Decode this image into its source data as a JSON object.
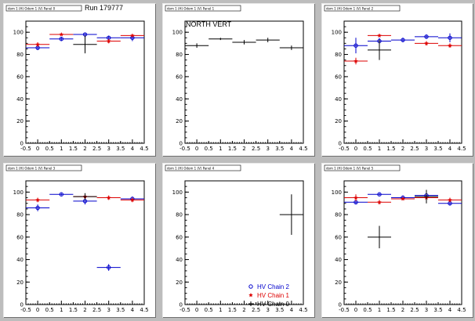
{
  "colors": {
    "chain2": "#0000cc",
    "chain1": "#dd0000",
    "chain0": "#000000"
  },
  "chart_data": [
    {
      "type": "scatter",
      "title": "dom 1 (H) Odom 1 (V) Panel 0",
      "annotation": "Run 179777",
      "xlim": [
        -0.5,
        4.5
      ],
      "ylim": [
        0,
        110
      ],
      "xticks": [
        "-0.5",
        "0",
        "0.5",
        "1",
        "1.5",
        "2",
        "2.5",
        "3",
        "3.5",
        "4",
        "4.5"
      ],
      "yticks": [
        "0",
        "20",
        "40",
        "60",
        "80",
        "100"
      ],
      "series": [
        {
          "color": "chain2",
          "marker": "circle",
          "points": [
            {
              "x": 0,
              "y": 86,
              "xerr": 0.5,
              "yerr": 2
            },
            {
              "x": 1,
              "y": 94,
              "xerr": 0.5,
              "yerr": 2
            },
            {
              "x": 2,
              "y": 98,
              "xerr": 0.5,
              "yerr": 1
            },
            {
              "x": 3,
              "y": 95,
              "xerr": 0.5,
              "yerr": 2
            },
            {
              "x": 4,
              "y": 95,
              "xerr": 0.5,
              "yerr": 3
            }
          ]
        },
        {
          "color": "chain1",
          "marker": "star",
          "points": [
            {
              "x": 0,
              "y": 89,
              "xerr": 0.5,
              "yerr": 2
            },
            {
              "x": 1,
              "y": 98,
              "xerr": 0.5,
              "yerr": 1
            },
            {
              "x": 3,
              "y": 92,
              "xerr": 0.5,
              "yerr": 2
            },
            {
              "x": 4,
              "y": 97,
              "xerr": 0.5,
              "yerr": 1
            }
          ]
        },
        {
          "color": "chain0",
          "marker": "cross",
          "points": [
            {
              "x": 2,
              "y": 89,
              "xerr": 0.5,
              "yerr": 8
            }
          ]
        }
      ]
    },
    {
      "type": "scatter",
      "title": "dom 1 (H) Odom 1 (V) Panel 1",
      "annotation": "NORTH VERT",
      "xlim": [
        -0.5,
        4.5
      ],
      "ylim": [
        0,
        110
      ],
      "xticks": [
        "-0.5",
        "0",
        "0.5",
        "1",
        "1.5",
        "2",
        "2.5",
        "3",
        "3.5",
        "4",
        "4.5"
      ],
      "yticks": [
        "0",
        "20",
        "40",
        "60",
        "80",
        "100"
      ],
      "series": [
        {
          "color": "chain0",
          "marker": "cross",
          "points": [
            {
              "x": 0,
              "y": 88,
              "xerr": 0.5,
              "yerr": 2
            },
            {
              "x": 1,
              "y": 94,
              "xerr": 0.5,
              "yerr": 1
            },
            {
              "x": 2,
              "y": 91,
              "xerr": 0.5,
              "yerr": 2
            },
            {
              "x": 3,
              "y": 93,
              "xerr": 0.5,
              "yerr": 2
            },
            {
              "x": 4,
              "y": 86,
              "xerr": 0.5,
              "yerr": 2
            }
          ]
        }
      ]
    },
    {
      "type": "scatter",
      "title": "dom 1 (H) Odom 1 (V) Panel 2",
      "xlim": [
        -0.5,
        4.5
      ],
      "ylim": [
        0,
        110
      ],
      "xticks": [
        "-0.5",
        "0",
        "0.5",
        "1",
        "1.5",
        "2",
        "2.5",
        "3",
        "3.5",
        "4",
        "4.5"
      ],
      "yticks": [
        "0",
        "20",
        "40",
        "60",
        "80",
        "100"
      ],
      "series": [
        {
          "color": "chain2",
          "marker": "circle",
          "points": [
            {
              "x": 0,
              "y": 88,
              "xerr": 0.5,
              "yerr": 7
            },
            {
              "x": 1,
              "y": 92,
              "xerr": 0.5,
              "yerr": 3
            },
            {
              "x": 2,
              "y": 93,
              "xerr": 0.5,
              "yerr": 2
            },
            {
              "x": 3,
              "y": 96,
              "xerr": 0.5,
              "yerr": 2
            },
            {
              "x": 4,
              "y": 95,
              "xerr": 0.5,
              "yerr": 4
            }
          ]
        },
        {
          "color": "chain1",
          "marker": "star",
          "points": [
            {
              "x": 0,
              "y": 74,
              "xerr": 0.5,
              "yerr": 3
            },
            {
              "x": 1,
              "y": 97,
              "xerr": 0.5,
              "yerr": 1
            },
            {
              "x": 3,
              "y": 90,
              "xerr": 0.5,
              "yerr": 2
            },
            {
              "x": 4,
              "y": 88,
              "xerr": 0.5,
              "yerr": 2
            }
          ]
        },
        {
          "color": "chain0",
          "marker": "cross",
          "points": [
            {
              "x": 1,
              "y": 84,
              "xerr": 0.5,
              "yerr": 9
            }
          ]
        }
      ]
    },
    {
      "type": "scatter",
      "title": "dom 1 (H) Odom 1 (V) Panel 3",
      "xlim": [
        -0.5,
        4.5
      ],
      "ylim": [
        0,
        110
      ],
      "xticks": [
        "-0.5",
        "0",
        "0.5",
        "1",
        "1.5",
        "2",
        "2.5",
        "3",
        "3.5",
        "4",
        "4.5"
      ],
      "yticks": [
        "0",
        "20",
        "40",
        "60",
        "80",
        "100"
      ],
      "series": [
        {
          "color": "chain2",
          "marker": "circle",
          "points": [
            {
              "x": 0,
              "y": 86,
              "xerr": 0.5,
              "yerr": 3
            },
            {
              "x": 1,
              "y": 98,
              "xerr": 0.5,
              "yerr": 1
            },
            {
              "x": 2,
              "y": 92,
              "xerr": 0.5,
              "yerr": 3
            },
            {
              "x": 3,
              "y": 33,
              "xerr": 0.5,
              "yerr": 3
            },
            {
              "x": 4,
              "y": 94,
              "xerr": 0.5,
              "yerr": 2
            }
          ]
        },
        {
          "color": "chain1",
          "marker": "star",
          "points": [
            {
              "x": 0,
              "y": 93,
              "xerr": 0.5,
              "yerr": 2
            },
            {
              "x": 2,
              "y": 96,
              "xerr": 0.5,
              "yerr": 2
            },
            {
              "x": 3,
              "y": 95,
              "xerr": 0.5,
              "yerr": 2
            },
            {
              "x": 4,
              "y": 93,
              "xerr": 0.5,
              "yerr": 2
            }
          ]
        },
        {
          "color": "chain0",
          "marker": "cross",
          "points": [
            {
              "x": 2,
              "y": 96,
              "xerr": 0.5,
              "yerr": 3
            }
          ]
        }
      ]
    },
    {
      "type": "scatter",
      "title": "dom 1 (H) Odom 1 (V) Panel 4",
      "xlim": [
        -0.5,
        4.5
      ],
      "ylim": [
        0,
        110
      ],
      "xticks": [
        "-0.5",
        "0",
        "0.5",
        "1",
        "1.5",
        "2",
        "2.5",
        "3",
        "3.5",
        "4",
        "4.5"
      ],
      "yticks": [
        "0",
        "20",
        "40",
        "60",
        "80",
        "100"
      ],
      "legend": {
        "placement": "bottom-right",
        "entries": [
          {
            "label": "HV Chain 2",
            "color": "chain2",
            "marker": "circle"
          },
          {
            "label": "HV Chain 1",
            "color": "chain1",
            "marker": "star"
          },
          {
            "label": "HV Chain 0",
            "color": "chain0",
            "marker": "cross"
          }
        ]
      },
      "series": [
        {
          "color": "chain0",
          "marker": "cross",
          "points": [
            {
              "x": 4,
              "y": 80,
              "xerr": 0.5,
              "yerr": 18
            }
          ]
        }
      ]
    },
    {
      "type": "scatter",
      "title": "dom 1 (H) Odom 1 (V) Panel 5",
      "xlim": [
        -0.5,
        4.5
      ],
      "ylim": [
        0,
        110
      ],
      "xticks": [
        "-0.5",
        "0",
        "0.5",
        "1",
        "1.5",
        "2",
        "2.5",
        "3",
        "3.5",
        "4",
        "4.5"
      ],
      "yticks": [
        "0",
        "20",
        "40",
        "60",
        "80",
        "100"
      ],
      "series": [
        {
          "color": "chain2",
          "marker": "circle",
          "points": [
            {
              "x": 0,
              "y": 91,
              "xerr": 0.5,
              "yerr": 2
            },
            {
              "x": 1,
              "y": 98,
              "xerr": 0.5,
              "yerr": 1
            },
            {
              "x": 2,
              "y": 95,
              "xerr": 0.5,
              "yerr": 2
            },
            {
              "x": 3,
              "y": 97,
              "xerr": 0.5,
              "yerr": 2
            },
            {
              "x": 4,
              "y": 90,
              "xerr": 0.5,
              "yerr": 2
            }
          ]
        },
        {
          "color": "chain1",
          "marker": "star",
          "points": [
            {
              "x": 0,
              "y": 95,
              "xerr": 0.5,
              "yerr": 3
            },
            {
              "x": 1,
              "y": 91,
              "xerr": 0.5,
              "yerr": 2
            },
            {
              "x": 2,
              "y": 94,
              "xerr": 0.5,
              "yerr": 1
            },
            {
              "x": 3,
              "y": 95,
              "xerr": 0.5,
              "yerr": 2
            },
            {
              "x": 4,
              "y": 93,
              "xerr": 0.5,
              "yerr": 2
            }
          ]
        },
        {
          "color": "chain0",
          "marker": "cross",
          "points": [
            {
              "x": 3,
              "y": 96,
              "xerr": 0.5,
              "yerr": 6
            },
            {
              "x": 1,
              "y": 60,
              "xerr": 0.5,
              "yerr": 10
            }
          ]
        }
      ]
    }
  ]
}
